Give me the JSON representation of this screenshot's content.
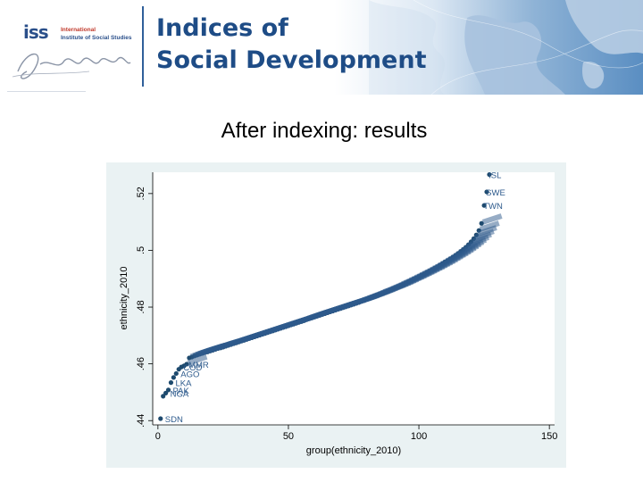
{
  "header": {
    "logo_mark": "iss",
    "logo_line1": "International",
    "logo_line2": "Institute of Social Studies",
    "title_line1": "Indices of",
    "title_line2": "Social Development",
    "colors": {
      "brand_blue": "#1e4c86",
      "accent_red": "#c0392b"
    }
  },
  "slide": {
    "title": "After indexing: results"
  },
  "chart_data": {
    "type": "scatter",
    "title": "",
    "xlabel": "group(ethnicity_2010)",
    "ylabel": "ethnicity_2010",
    "xlim": [
      -2,
      152
    ],
    "ylim": [
      0.4385,
      0.5275
    ],
    "xticks": [
      0,
      50,
      100,
      150
    ],
    "yticks": [
      0.44,
      0.46,
      0.48,
      0.5,
      0.52
    ],
    "yticklabels": [
      ".44",
      ".46",
      ".48",
      ".5",
      ".52"
    ],
    "grid": false,
    "marker_color": "#1e4a6e",
    "label_color": "#2d5a8c",
    "labeled_points": [
      {
        "x": 1,
        "y": 0.4407,
        "label": "SDN"
      },
      {
        "x": 3,
        "y": 0.4497,
        "label": "NGA"
      },
      {
        "x": 4,
        "y": 0.4508,
        "label": "PAK"
      },
      {
        "x": 5,
        "y": 0.4534,
        "label": "LKA"
      },
      {
        "x": 7,
        "y": 0.4566,
        "label": "AGO"
      },
      {
        "x": 8,
        "y": 0.4589,
        "label": "COD"
      },
      {
        "x": 10,
        "y": 0.4599,
        "label": "MMR"
      },
      {
        "x": 123,
        "y": 0.5158,
        "label": "TWN"
      },
      {
        "x": 124,
        "y": 0.5206,
        "label": "SWE"
      },
      {
        "x": 125,
        "y": 0.5267,
        "label": "ISL"
      }
    ],
    "series_y": [
      0.4407,
      0.4486,
      0.4497,
      0.4508,
      0.4534,
      0.4552,
      0.4566,
      0.4581,
      0.4589,
      0.4593,
      0.4599,
      0.4621,
      0.4624,
      0.4628,
      0.4631,
      0.4634,
      0.4637,
      0.464,
      0.4642,
      0.4645,
      0.4648,
      0.4651,
      0.4654,
      0.4656,
      0.4659,
      0.4662,
      0.4665,
      0.4668,
      0.4671,
      0.4674,
      0.4677,
      0.468,
      0.4683,
      0.4686,
      0.4689,
      0.4692,
      0.4695,
      0.4698,
      0.4701,
      0.4704,
      0.4707,
      0.471,
      0.4713,
      0.4716,
      0.4719,
      0.4722,
      0.4725,
      0.4728,
      0.4731,
      0.4734,
      0.4737,
      0.474,
      0.4743,
      0.4746,
      0.4749,
      0.4752,
      0.4756,
      0.4759,
      0.4762,
      0.4765,
      0.4768,
      0.4771,
      0.4774,
      0.4777,
      0.478,
      0.4783,
      0.4786,
      0.4789,
      0.4792,
      0.4795,
      0.4798,
      0.4801,
      0.4804,
      0.4807,
      0.481,
      0.4813,
      0.4816,
      0.482,
      0.4823,
      0.4827,
      0.483,
      0.4834,
      0.4837,
      0.4841,
      0.4845,
      0.4849,
      0.4852,
      0.4856,
      0.486,
      0.4864,
      0.4868,
      0.4872,
      0.4877,
      0.4881,
      0.4885,
      0.489,
      0.4894,
      0.4899,
      0.4903,
      0.4908,
      0.4913,
      0.4917,
      0.4922,
      0.4927,
      0.4932,
      0.4937,
      0.4942,
      0.4948,
      0.4953,
      0.4959,
      0.4964,
      0.497,
      0.4976,
      0.4982,
      0.4989,
      0.4996,
      0.5003,
      0.5011,
      0.502,
      0.503,
      0.5041,
      0.5054,
      0.507,
      0.5095,
      0.5158,
      0.5206,
      0.5267
    ]
  }
}
